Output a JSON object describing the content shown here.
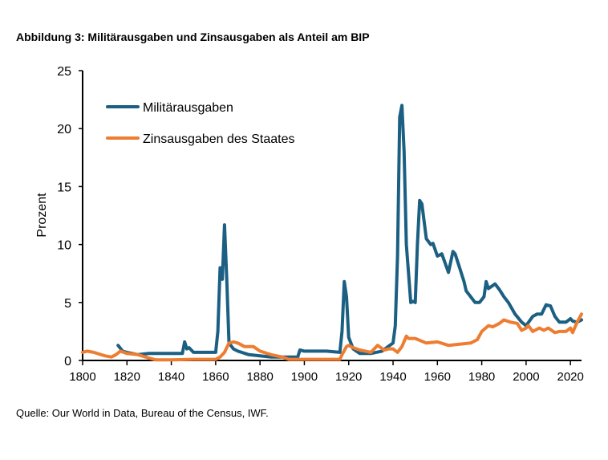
{
  "title": "Abbildung 3: Militärausgaben und Zinsausgaben als Anteil am BIP",
  "source": "Quelle: Our World in Data, Bureau of the Census, IWF.",
  "chart_data": {
    "type": "line",
    "title": "Abbildung 3: Militärausgaben und Zinsausgaben als Anteil am BIP",
    "xlabel": "",
    "ylabel": "Prozent",
    "xlim": [
      1800,
      2025
    ],
    "ylim": [
      0,
      25
    ],
    "xticks": [
      "1800",
      "1820",
      "1840",
      "1860",
      "1880",
      "1900",
      "1920",
      "1940",
      "1960",
      "1980",
      "2000",
      "2020"
    ],
    "yticks": [
      "0",
      "5",
      "10",
      "15",
      "20",
      "25"
    ],
    "grid": false,
    "legend": "top-left",
    "series": [
      {
        "name": "Militärausgaben",
        "color": "#1b5f82",
        "x": [
          1816,
          1818,
          1820,
          1825,
          1830,
          1835,
          1840,
          1845,
          1846,
          1847,
          1848,
          1850,
          1855,
          1860,
          1861,
          1862,
          1863,
          1864,
          1865,
          1866,
          1868,
          1870,
          1875,
          1880,
          1885,
          1890,
          1897,
          1898,
          1900,
          1910,
          1916,
          1917,
          1918,
          1919,
          1920,
          1922,
          1925,
          1930,
          1935,
          1940,
          1941,
          1942,
          1943,
          1944,
          1945,
          1946,
          1948,
          1949,
          1950,
          1951,
          1952,
          1953,
          1955,
          1957,
          1958,
          1960,
          1962,
          1965,
          1967,
          1968,
          1970,
          1972,
          1973,
          1975,
          1977,
          1979,
          1981,
          1982,
          1983,
          1986,
          1988,
          1990,
          1992,
          1995,
          1998,
          2000,
          2003,
          2005,
          2007,
          2009,
          2011,
          2013,
          2015,
          2018,
          2020,
          2021,
          2023,
          2025
        ],
        "y": [
          1.3,
          0.8,
          0.7,
          0.5,
          0.6,
          0.6,
          0.6,
          0.6,
          1.6,
          1.0,
          1.1,
          0.7,
          0.7,
          0.7,
          2.5,
          8.0,
          7.0,
          11.7,
          7.0,
          1.5,
          1.0,
          0.8,
          0.5,
          0.4,
          0.3,
          0.3,
          0.3,
          0.9,
          0.8,
          0.8,
          0.7,
          2.5,
          6.8,
          5.5,
          2.0,
          1.0,
          0.6,
          0.6,
          0.8,
          1.5,
          3.0,
          9.0,
          21.0,
          22.0,
          18.0,
          10.0,
          5.0,
          5.1,
          5.0,
          10.0,
          13.8,
          13.5,
          10.5,
          10.0,
          10.1,
          9.0,
          9.2,
          7.6,
          9.4,
          9.2,
          8.0,
          6.8,
          6.0,
          5.5,
          5.0,
          5.0,
          5.5,
          6.8,
          6.2,
          6.6,
          6.1,
          5.5,
          5.0,
          4.0,
          3.3,
          3.0,
          3.8,
          4.0,
          4.0,
          4.8,
          4.7,
          3.8,
          3.3,
          3.3,
          3.6,
          3.4,
          3.3,
          3.5
        ]
      },
      {
        "name": "Zinsausgaben des Staates",
        "color": "#ed7d31",
        "x": [
          1800,
          1802,
          1805,
          1810,
          1813,
          1815,
          1817,
          1820,
          1825,
          1830,
          1833,
          1840,
          1850,
          1860,
          1862,
          1864,
          1866,
          1868,
          1870,
          1873,
          1875,
          1877,
          1880,
          1885,
          1890,
          1893,
          1900,
          1916,
          1917,
          1919,
          1920,
          1922,
          1925,
          1930,
          1933,
          1936,
          1938,
          1940,
          1942,
          1944,
          1946,
          1947,
          1950,
          1955,
          1960,
          1965,
          1970,
          1975,
          1978,
          1980,
          1983,
          1985,
          1988,
          1990,
          1993,
          1996,
          1998,
          2000,
          2001,
          2003,
          2006,
          2008,
          2010,
          2013,
          2015,
          2018,
          2020,
          2021,
          2023,
          2025
        ],
        "y": [
          0.7,
          0.8,
          0.7,
          0.4,
          0.3,
          0.5,
          0.8,
          0.6,
          0.5,
          0.2,
          0.05,
          0.05,
          0.1,
          0.1,
          0.3,
          0.7,
          1.5,
          1.6,
          1.5,
          1.2,
          1.2,
          1.2,
          0.8,
          0.5,
          0.3,
          0.1,
          0.1,
          0.1,
          0.5,
          1.2,
          1.3,
          1.1,
          0.9,
          0.7,
          1.3,
          0.9,
          1.0,
          1.0,
          0.7,
          1.2,
          2.1,
          1.9,
          1.9,
          1.5,
          1.6,
          1.3,
          1.4,
          1.5,
          1.8,
          2.5,
          3.0,
          2.9,
          3.2,
          3.5,
          3.3,
          3.2,
          2.6,
          2.8,
          3.0,
          2.5,
          2.8,
          2.6,
          2.8,
          2.4,
          2.5,
          2.5,
          2.8,
          2.4,
          3.3,
          4.0
        ]
      }
    ]
  }
}
